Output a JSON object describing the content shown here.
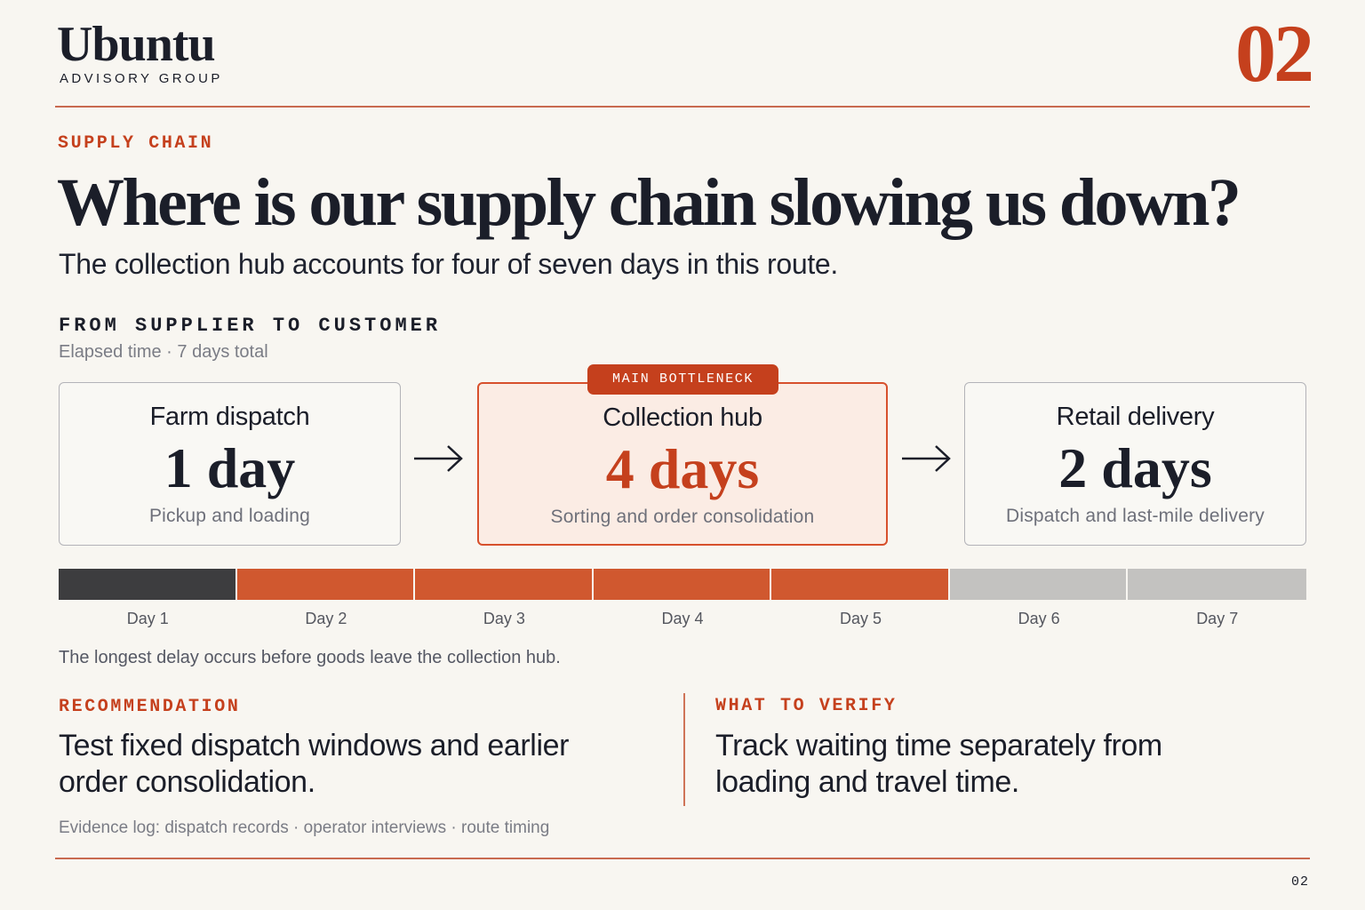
{
  "brand": {
    "name": "Ubuntu",
    "subtitle": "ADVISORY GROUP"
  },
  "page_number": "02",
  "footer_page_number": "02",
  "kicker": "SUPPLY CHAIN",
  "headline": "Where is our supply chain slowing us down?",
  "subheadline": "The collection hub accounts for four of seven days in this route.",
  "route": {
    "label": "FROM SUPPLIER TO CUSTOMER",
    "sublabel": "Elapsed time · 7 days total",
    "badge": "MAIN BOTTLENECK",
    "stages": [
      {
        "title": "Farm dispatch",
        "value": "1 day",
        "description": "Pickup and loading"
      },
      {
        "title": "Collection hub",
        "value": "4 days",
        "description": "Sorting and order consolidation"
      },
      {
        "title": "Retail delivery",
        "value": "2 days",
        "description": "Dispatch and last-mile delivery"
      }
    ]
  },
  "timeline": {
    "days": [
      "Day 1",
      "Day 2",
      "Day 3",
      "Day 4",
      "Day 5",
      "Day 6",
      "Day 7"
    ],
    "colors": {
      "farm": "#3d3d3f",
      "hub": "#d0582f",
      "retail": "#c3c2c0"
    }
  },
  "note": "The longest delay occurs before goods leave the collection hub.",
  "recommendation": {
    "label": "RECOMMENDATION",
    "line1": "Test fixed dispatch windows and earlier",
    "line2": "order consolidation."
  },
  "verify": {
    "label": "WHAT TO VERIFY",
    "line1": "Track waiting time separately from",
    "line2": "loading and travel time."
  },
  "evidence": "Evidence log: dispatch records · operator interviews · route timing"
}
